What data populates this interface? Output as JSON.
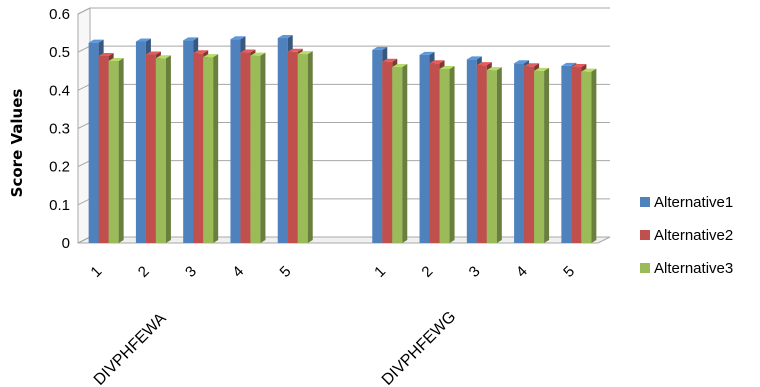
{
  "chart_data": {
    "type": "bar",
    "style": "3d-clustered-column",
    "ylabel": "Score Values",
    "ylim": [
      0,
      0.6
    ],
    "yticks": [
      "0",
      "0.1",
      "0.2",
      "0.3",
      "0.4",
      "0.5",
      "0.6"
    ],
    "grid": true,
    "legend_position": "right",
    "groups": [
      {
        "label": "DIVPHFEWA",
        "categories": [
          "1",
          "2",
          "3",
          "4",
          "5"
        ]
      },
      {
        "label": "DIVPHFEWG",
        "categories": [
          "1",
          "2",
          "3",
          "4",
          "5"
        ]
      }
    ],
    "series": [
      {
        "name": "Alternative1",
        "color": "#4F81BD",
        "values": [
          0.525,
          0.528,
          0.531,
          0.534,
          0.537,
          0.506,
          0.493,
          0.481,
          0.471,
          0.464
        ]
      },
      {
        "name": "Alternative2",
        "color": "#C0504D",
        "values": [
          0.49,
          0.494,
          0.497,
          0.499,
          0.501,
          0.475,
          0.471,
          0.466,
          0.463,
          0.461
        ]
      },
      {
        "name": "Alternative3",
        "color": "#9BBB59",
        "values": [
          0.477,
          0.484,
          0.487,
          0.491,
          0.495,
          0.461,
          0.456,
          0.453,
          0.451,
          0.449
        ]
      }
    ]
  }
}
